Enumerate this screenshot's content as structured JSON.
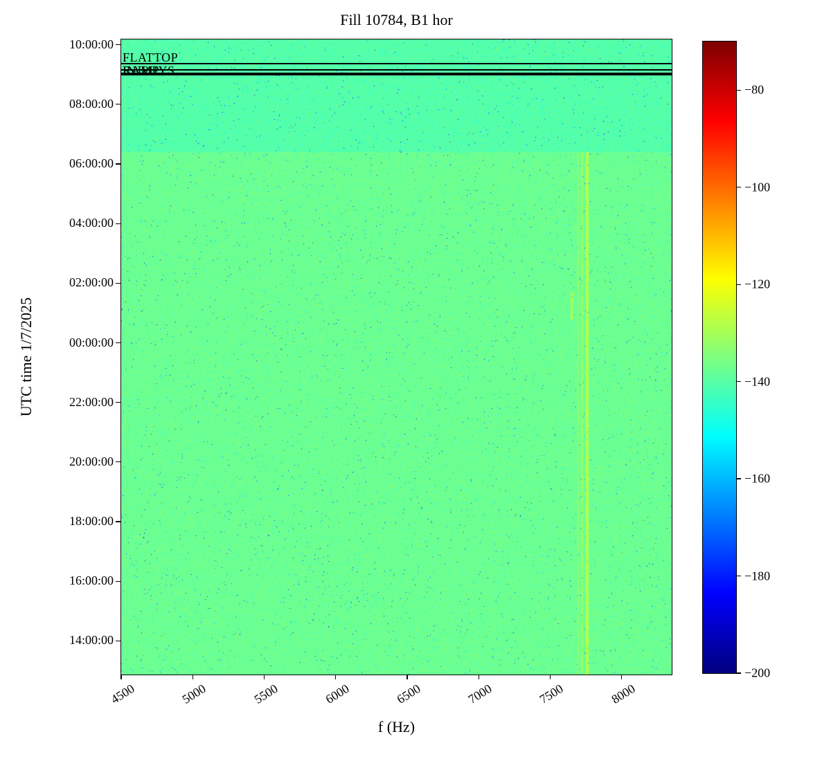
{
  "title": "Fill 10784, B1 hor",
  "xlabel": "f (Hz)",
  "ylabel": "UTC time 1/7/2025",
  "annotations": [
    {
      "label": "FLATTOP",
      "time_hours": 33.37,
      "placement": "above"
    },
    {
      "label": "INJPHYS",
      "time_hours": 33.15,
      "placement": "on"
    },
    {
      "label": "RAMP",
      "time_hours": 33.15,
      "placement": "on"
    }
  ],
  "x_axis": {
    "ticks": [
      {
        "value": 4500,
        "label": "4500"
      },
      {
        "value": 5000,
        "label": "5000"
      },
      {
        "value": 5500,
        "label": "5500"
      },
      {
        "value": 6000,
        "label": "6000"
      },
      {
        "value": 6500,
        "label": "6500"
      },
      {
        "value": 7000,
        "label": "7000"
      },
      {
        "value": 7500,
        "label": "7500"
      },
      {
        "value": 8000,
        "label": "8000"
      }
    ]
  },
  "y_axis": {
    "ticks": [
      {
        "hours": 34,
        "label": "10:00:00"
      },
      {
        "hours": 32,
        "label": "08:00:00"
      },
      {
        "hours": 30,
        "label": "06:00:00"
      },
      {
        "hours": 28,
        "label": "04:00:00"
      },
      {
        "hours": 26,
        "label": "02:00:00"
      },
      {
        "hours": 24,
        "label": "00:00:00"
      },
      {
        "hours": 22,
        "label": "22:00:00"
      },
      {
        "hours": 20,
        "label": "20:00:00"
      },
      {
        "hours": 18,
        "label": "18:00:00"
      },
      {
        "hours": 16,
        "label": "16:00:00"
      },
      {
        "hours": 14,
        "label": "14:00:00"
      }
    ]
  },
  "colorbar": {
    "colormap": "jet",
    "vmin": -200,
    "vmax": -70,
    "ticks": [
      {
        "value": -80,
        "label": "−80"
      },
      {
        "value": -100,
        "label": "−100"
      },
      {
        "value": -120,
        "label": "−120"
      },
      {
        "value": -140,
        "label": "−140"
      },
      {
        "value": -160,
        "label": "−160"
      },
      {
        "value": -180,
        "label": "−180"
      },
      {
        "value": -200,
        "label": "−200"
      }
    ]
  },
  "chart_data": {
    "type": "heatmap",
    "title": "Fill 10784, B1 hor",
    "xlabel": "f (Hz)",
    "ylabel": "UTC time 1/7/2025",
    "x_range_hz": [
      4500,
      8350
    ],
    "y_range_hours": [
      12.87,
      34.18
    ],
    "y_axis_date_start": "1/7/2025",
    "value_range_db": [
      -200,
      -70
    ],
    "background": {
      "upper_band": {
        "start_hours": 30.4,
        "end_hours": 34.18,
        "base_db": -140.5
      },
      "lower": {
        "base_db": -137.5
      },
      "noise_db": 4
    },
    "beam_mode_lines": [
      {
        "time_hours": 33.37,
        "thickness": 1.5
      },
      {
        "time_hours": 33.15,
        "thickness": 2
      },
      {
        "time_hours": 33.03,
        "thickness": 4
      }
    ],
    "vertical_stripes": [
      {
        "f_hz": 7755,
        "width_hz": 14,
        "boost_db": 9,
        "from_hours": 12.87,
        "to_hours": 30.4
      },
      {
        "f_hz": 7720,
        "width_hz": 12,
        "boost_db": 5,
        "from_hours": 12.87,
        "to_hours": 30.4
      },
      {
        "f_hz": 7690,
        "width_hz": 10,
        "boost_db": 3,
        "from_hours": 12.87,
        "to_hours": 30.4
      },
      {
        "f_hz": 7650,
        "width_hz": 12,
        "boost_db": 7,
        "from_hours": 24.8,
        "to_hours": 25.7
      }
    ],
    "speckle": {
      "dark_prob": 0.005,
      "dark_depth_db": [
        15,
        45
      ],
      "bright_prob": 0.004,
      "bright_boost_db": [
        5,
        13
      ]
    }
  }
}
